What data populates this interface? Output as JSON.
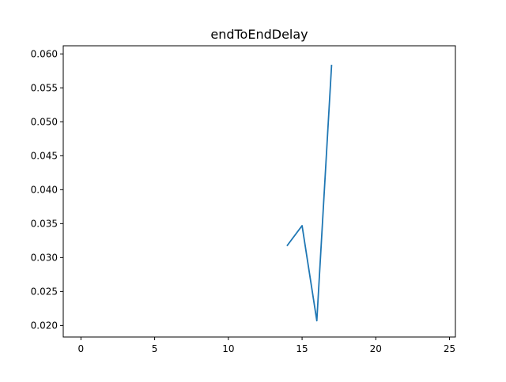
{
  "chart_data": {
    "type": "line",
    "title": "endToEndDelay",
    "xlabel": "",
    "ylabel": "",
    "xlim": [
      -1.2,
      25.4
    ],
    "ylim": [
      0.0183,
      0.0612
    ],
    "xticks": [
      0,
      5,
      10,
      15,
      20,
      25
    ],
    "xtick_labels": [
      "0",
      "5",
      "10",
      "15",
      "20",
      "25"
    ],
    "yticks": [
      0.02,
      0.025,
      0.03,
      0.035,
      0.04,
      0.045,
      0.05,
      0.055,
      0.06
    ],
    "ytick_labels": [
      "0.020",
      "0.025",
      "0.030",
      "0.035",
      "0.040",
      "0.045",
      "0.050",
      "0.055",
      "0.060"
    ],
    "grid": false,
    "series": [
      {
        "color": "#1f77b4",
        "x": [
          14,
          15,
          16,
          17
        ],
        "y": [
          0.0318,
          0.0347,
          0.0207,
          0.0583
        ]
      }
    ]
  }
}
